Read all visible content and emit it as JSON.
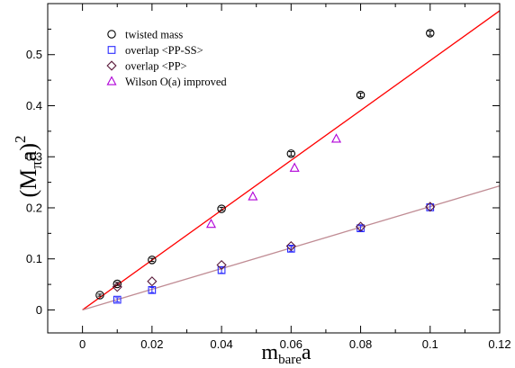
{
  "chart_data": {
    "type": "scatter",
    "title": "",
    "xlabel": {
      "main": "m",
      "sub": "bare",
      "tail": "a"
    },
    "ylabel": {
      "open": "(M",
      "sub": "π",
      "mid": "a)",
      "sup": "2"
    },
    "xlim": [
      -0.01,
      0.12
    ],
    "ylim": [
      -0.045,
      0.6
    ],
    "x_ticks": [
      0,
      0.02,
      0.04,
      0.06,
      0.08,
      0.1,
      0.12
    ],
    "x_tick_labels": [
      "0",
      "0.02",
      "0.04",
      "0.06",
      "0.08",
      "0.1",
      "0.12"
    ],
    "y_ticks": [
      0,
      0.1,
      0.2,
      0.3,
      0.4,
      0.5
    ],
    "y_tick_labels": [
      "0",
      "0.1",
      "0.2",
      "0.3",
      "0.4",
      "0.5"
    ],
    "legend_position": "top-left",
    "series": [
      {
        "name": "twisted mass",
        "marker": "circle",
        "color": "#000000",
        "x": [
          0.005,
          0.01,
          0.02,
          0.04,
          0.06,
          0.08,
          0.1
        ],
        "y": [
          0.029,
          0.051,
          0.098,
          0.198,
          0.306,
          0.421,
          0.542
        ],
        "err": [
          0.002,
          0.003,
          0.003,
          0.003,
          0.004,
          0.004,
          0.004
        ]
      },
      {
        "name": "overlap <PP-SS>",
        "marker": "square",
        "color": "#2a2aff",
        "x": [
          0.01,
          0.02,
          0.04,
          0.06,
          0.08,
          0.1
        ],
        "y": [
          0.02,
          0.039,
          0.078,
          0.12,
          0.16,
          0.201
        ],
        "err": [
          0.004,
          0.005,
          0.006,
          0.005,
          0.005,
          0.006
        ]
      },
      {
        "name": "overlap <PP>",
        "marker": "diamond",
        "color": "#5a1a3a",
        "x": [
          0.01,
          0.02,
          0.04,
          0.06,
          0.08,
          0.1
        ],
        "y": [
          0.045,
          0.056,
          0.088,
          0.125,
          0.163,
          0.202
        ],
        "err": [
          0,
          0,
          0,
          0,
          0,
          0
        ]
      },
      {
        "name": "Wilson O(a) improved",
        "marker": "triangle",
        "color": "#b000d8",
        "x": [
          0.037,
          0.049,
          0.061,
          0.073
        ],
        "y": [
          0.168,
          0.222,
          0.278,
          0.335
        ],
        "err": [
          0,
          0,
          0,
          0
        ]
      }
    ],
    "lines": [
      {
        "color": "#ff0000",
        "x": [
          0,
          0.12
        ],
        "y": [
          0,
          0.586
        ]
      },
      {
        "color": "#c08c94",
        "x": [
          0,
          0.12
        ],
        "y": [
          0,
          0.243
        ]
      }
    ]
  }
}
